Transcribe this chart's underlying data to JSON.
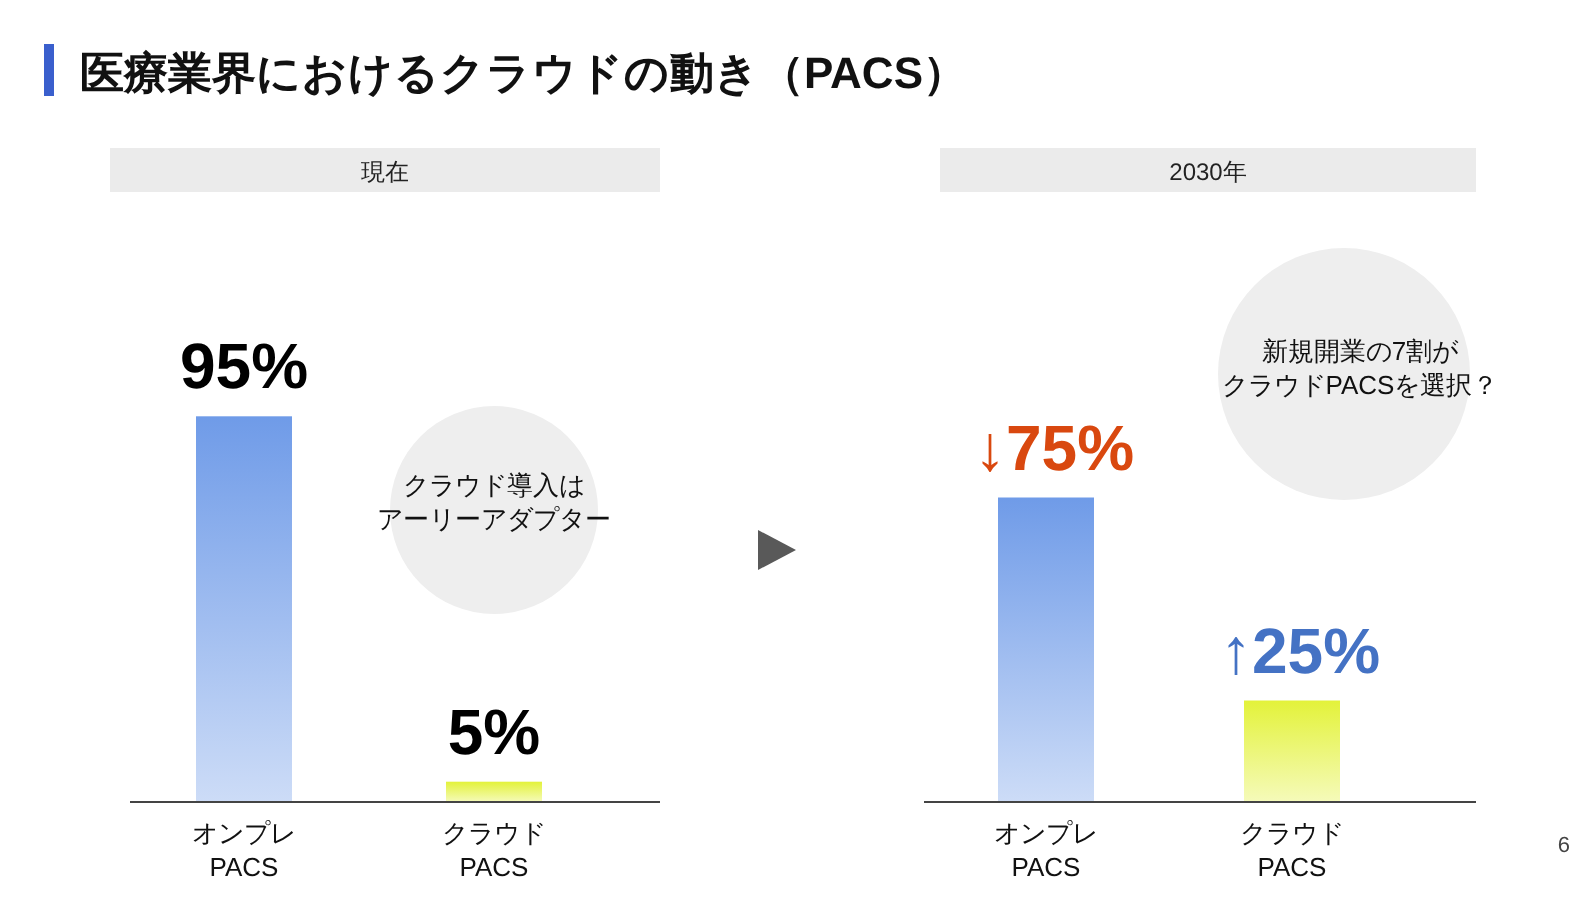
{
  "chart_data": [
    {
      "type": "bar",
      "title": "医療業界におけるクラウドの動き（PACS）",
      "subtitle": "現在",
      "categories": [
        "オンプレ\nPACS",
        "クラウド\nPACS"
      ],
      "values": [
        95,
        5
      ],
      "value_labels": [
        "95%",
        "5%"
      ],
      "colors": [
        "#6f9be8",
        "#e3f23a"
      ],
      "annotations": [
        "クラウド導入は",
        "アーリーアダプター"
      ]
    },
    {
      "type": "bar",
      "subtitle": "2030年",
      "categories": [
        "オンプレ\nPACS",
        "クラウド\nPACS"
      ],
      "values": [
        75,
        25
      ],
      "value_labels": [
        "↓75%",
        "↑25%"
      ],
      "colors": [
        "#6f9be8",
        "#e3f23a"
      ],
      "annotations": [
        "新規開業の7割が",
        "クラウドPACSを選択？",
        "6"
      ]
    }
  ]
}
